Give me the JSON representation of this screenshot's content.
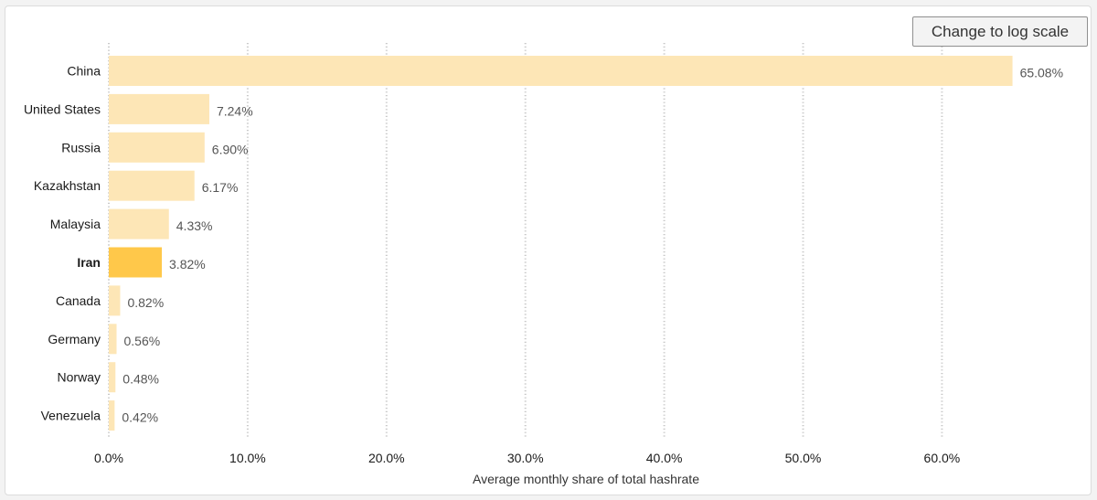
{
  "button": {
    "log_scale_label": "Change to log scale"
  },
  "colors": {
    "bar": "#fde6b6",
    "highlight": "#ffc84a",
    "grid": "#c8c8c8"
  },
  "chart_data": {
    "type": "bar",
    "orientation": "horizontal",
    "xlabel": "Average monthly share of total hashrate",
    "xlim": [
      0,
      70
    ],
    "xticks": [
      0,
      10,
      20,
      30,
      40,
      50,
      60
    ],
    "xtick_labels": [
      "0.0%",
      "10.0%",
      "20.0%",
      "30.0%",
      "40.0%",
      "50.0%",
      "60.0%"
    ],
    "grid": "vertical dotted",
    "categories": [
      "China",
      "United States",
      "Russia",
      "Kazakhstan",
      "Malaysia",
      "Iran",
      "Canada",
      "Germany",
      "Norway",
      "Venezuela"
    ],
    "values": [
      65.08,
      7.24,
      6.9,
      6.17,
      4.33,
      3.82,
      0.82,
      0.56,
      0.48,
      0.42
    ],
    "value_labels": [
      "65.08%",
      "7.24%",
      "6.90%",
      "6.17%",
      "4.33%",
      "3.82%",
      "0.82%",
      "0.56%",
      "0.48%",
      "0.42%"
    ],
    "highlighted": "Iran"
  }
}
